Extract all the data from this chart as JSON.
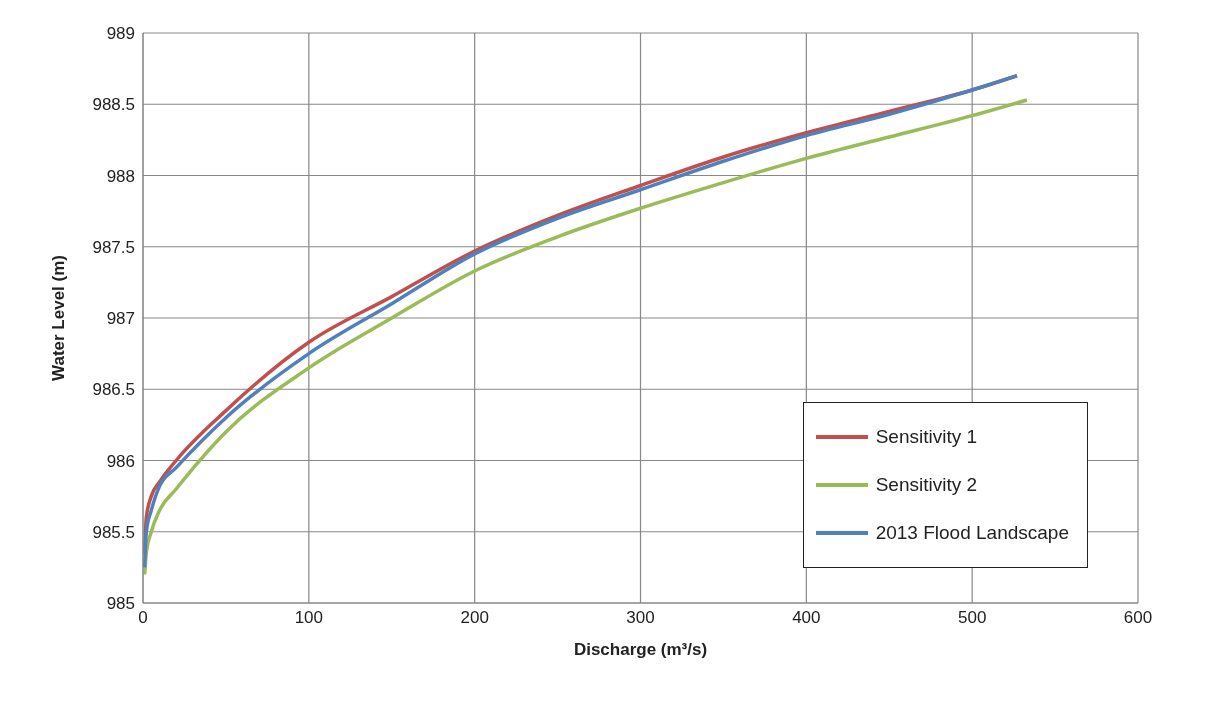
{
  "chart_data": {
    "type": "line",
    "xlabel": "Discharge  (m³/s)",
    "ylabel": "Water Level (m)",
    "xlim": [
      0,
      600
    ],
    "xticks": [
      0,
      100,
      200,
      300,
      400,
      500,
      600
    ],
    "ylim": [
      985,
      989
    ],
    "yticks": [
      985,
      985.5,
      986,
      986.5,
      987,
      987.5,
      988,
      988.5,
      989
    ],
    "grid": true,
    "legend": "bottom right",
    "marker": "none",
    "line_style": "solid",
    "series": [
      {
        "name": "Sensitivity 1",
        "color": "#c0504d",
        "x": [
          1,
          2,
          5,
          10,
          20,
          50,
          100,
          150,
          200,
          250,
          300,
          350,
          400,
          450,
          500,
          527
        ],
        "values": [
          985.35,
          985.6,
          985.75,
          985.85,
          986.0,
          986.35,
          986.83,
          987.15,
          987.47,
          987.72,
          987.93,
          988.13,
          988.3,
          988.45,
          988.6,
          988.7
        ]
      },
      {
        "name": "Sensitivity 2",
        "color": "#9bbb59",
        "x": [
          1,
          2,
          5,
          10,
          20,
          50,
          100,
          150,
          200,
          250,
          300,
          350,
          400,
          450,
          500,
          533
        ],
        "values": [
          985.2,
          985.35,
          985.5,
          985.65,
          985.8,
          986.2,
          986.65,
          987.0,
          987.33,
          987.57,
          987.77,
          987.95,
          988.12,
          988.27,
          988.42,
          988.53
        ]
      },
      {
        "name": "2013 Flood Landscape",
        "color": "#4f81bd",
        "x": [
          1,
          2,
          5,
          10,
          20,
          50,
          100,
          150,
          200,
          250,
          300,
          350,
          400,
          450,
          500,
          527
        ],
        "values": [
          985.25,
          985.5,
          985.65,
          985.82,
          985.95,
          986.3,
          986.75,
          987.1,
          987.45,
          987.7,
          987.9,
          988.1,
          988.28,
          988.43,
          988.6,
          988.7
        ]
      }
    ]
  }
}
